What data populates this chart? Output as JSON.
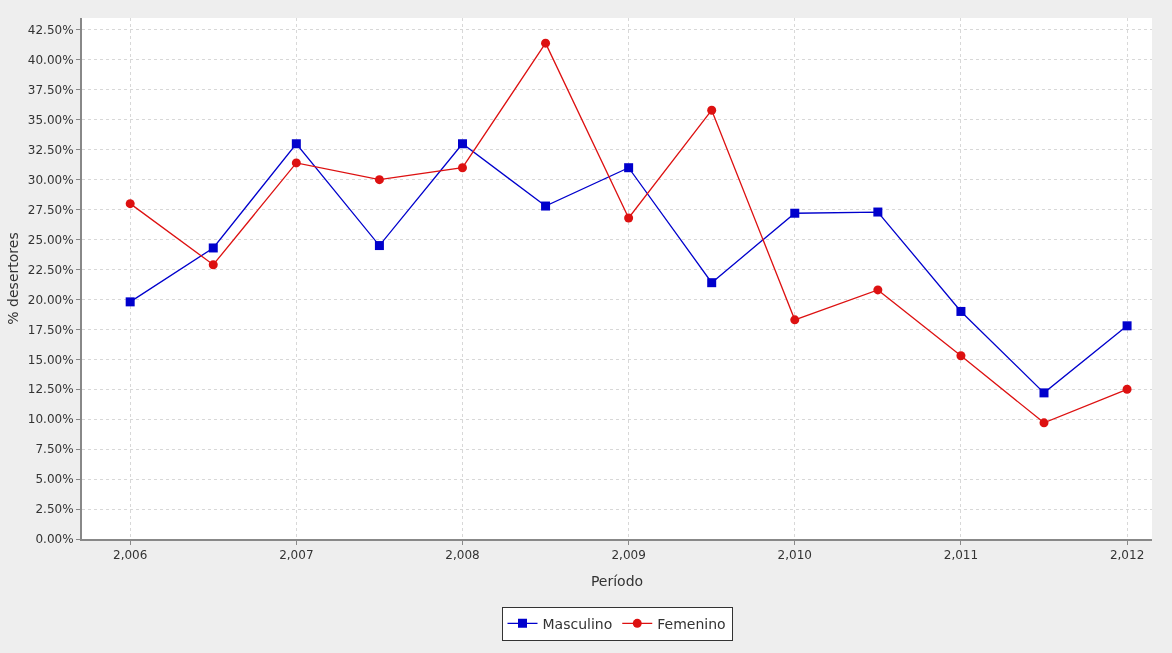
{
  "chart_data": {
    "type": "line",
    "xlabel": "Período",
    "ylabel": "% desertores",
    "x": [
      2006,
      2006.5,
      2007,
      2007.5,
      2008,
      2008.5,
      2009,
      2009.5,
      2010,
      2010.5,
      2011,
      2011.5,
      2012
    ],
    "series": [
      {
        "name": "Masculino",
        "color": "#0000cc",
        "marker": "square",
        "values": [
          19.8,
          24.3,
          33.0,
          24.5,
          33.0,
          27.8,
          31.0,
          21.4,
          27.2,
          27.3,
          19.0,
          12.2,
          17.8
        ]
      },
      {
        "name": "Femenino",
        "color": "#dd1111",
        "marker": "circle",
        "values": [
          28.0,
          22.9,
          31.4,
          30.0,
          31.0,
          41.4,
          26.8,
          35.8,
          18.3,
          20.8,
          15.3,
          9.7,
          12.5
        ]
      }
    ],
    "xlim": [
      2005.71,
      2012.15
    ],
    "xticks": [
      {
        "value": 2006,
        "label": "2,006"
      },
      {
        "value": 2007,
        "label": "2,007"
      },
      {
        "value": 2008,
        "label": "2,008"
      },
      {
        "value": 2009,
        "label": "2,009"
      },
      {
        "value": 2010,
        "label": "2,010"
      },
      {
        "value": 2011,
        "label": "2,011"
      },
      {
        "value": 2012,
        "label": "2,012"
      }
    ],
    "ylim": [
      0,
      43.5
    ],
    "yticks": [
      {
        "value": 0,
        "label": "0.00%"
      },
      {
        "value": 2.5,
        "label": "2.50%"
      },
      {
        "value": 5,
        "label": "5.00%"
      },
      {
        "value": 7.5,
        "label": "7.50%"
      },
      {
        "value": 10,
        "label": "10.00%"
      },
      {
        "value": 12.5,
        "label": "12.50%"
      },
      {
        "value": 15,
        "label": "15.00%"
      },
      {
        "value": 17.5,
        "label": "17.50%"
      },
      {
        "value": 20,
        "label": "20.00%"
      },
      {
        "value": 22.5,
        "label": "22.50%"
      },
      {
        "value": 25,
        "label": "25.00%"
      },
      {
        "value": 27.5,
        "label": "27.50%"
      },
      {
        "value": 30,
        "label": "30.00%"
      },
      {
        "value": 32.5,
        "label": "32.50%"
      },
      {
        "value": 35,
        "label": "35.00%"
      },
      {
        "value": 37.5,
        "label": "37.50%"
      },
      {
        "value": 40,
        "label": "40.00%"
      },
      {
        "value": 42.5,
        "label": "42.50%"
      }
    ],
    "grid": true,
    "legend": "bottom",
    "line_style": "solid"
  }
}
